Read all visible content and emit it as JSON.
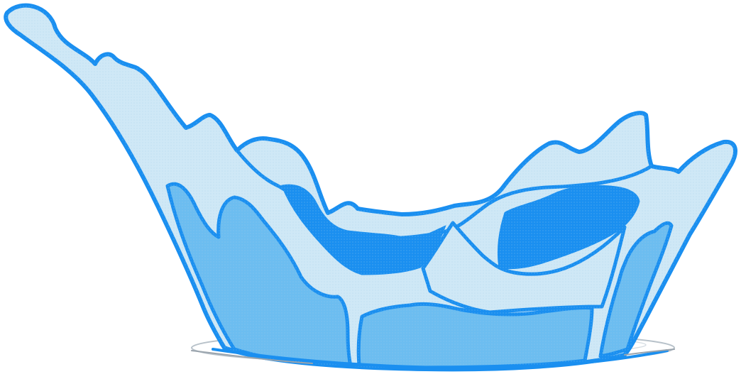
{
  "illustration": {
    "subject": "water-splash",
    "colors": {
      "outline": "#1a8ff0",
      "light_fill": "#cfe8f6",
      "mid_fill": "#6cbdf0",
      "dark_fill": "#1a8ff0",
      "ripple": "#b8c2ca"
    }
  }
}
